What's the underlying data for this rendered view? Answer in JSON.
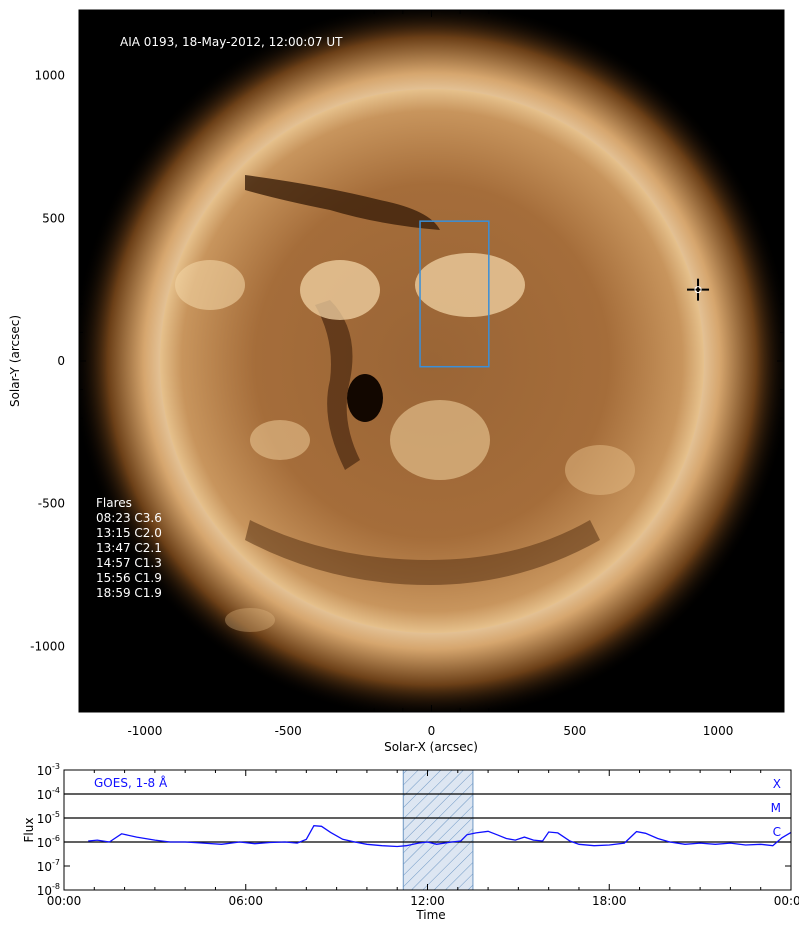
{
  "chart_data": [
    {
      "type": "image",
      "title": "AIA 0193, 18-May-2012, 12:00:07 UT",
      "xlabel": "Solar-X (arcsec)",
      "ylabel": "Solar-Y (arcsec)",
      "xlim": [
        -1230,
        1230
      ],
      "ylim": [
        -1230,
        1230
      ],
      "x_ticks": [
        -1000,
        -500,
        0,
        500,
        1000
      ],
      "y_ticks": [
        1000,
        500,
        0,
        -500,
        -1000
      ],
      "x_tick_labels": [
        "-1000",
        "-500",
        "0",
        "500",
        "1000"
      ],
      "y_tick_labels": [
        "1000",
        "500",
        "0",
        "-500",
        "-1000"
      ],
      "solar_radius_arcsec": 950,
      "box": {
        "x": [
          -40,
          200
        ],
        "y": [
          -20,
          490
        ],
        "color": "#3a8fd8"
      },
      "marker": {
        "type": "cross",
        "x": 930,
        "y": 250
      },
      "flares_heading": "Flares",
      "flares": [
        "08:23 C3.6",
        "13:15 C2.0",
        "13:47 C2.1",
        "14:57 C1.3",
        "15:56 C1.9",
        "18:59 C1.9"
      ],
      "colors": {
        "background": "#000000",
        "disk_bright": "#e8c38e",
        "disk_dark": "#3a200c",
        "corona": "#f4e4c9",
        "text": "#ffffff"
      }
    },
    {
      "type": "line",
      "title": "GOES, 1-8 Å",
      "xlabel": "Time",
      "ylabel": "Flux",
      "yscale": "log",
      "xlim": [
        0,
        24
      ],
      "ylim_exp": [
        -8,
        -3
      ],
      "x_ticks": [
        0,
        6,
        12,
        18,
        24
      ],
      "x_tick_labels": [
        "00:00",
        "06:00",
        "12:00",
        "18:00",
        "00:00"
      ],
      "y_tick_exponents": [
        -3,
        -4,
        -5,
        -6,
        -7,
        -8
      ],
      "y_tick_base": "10",
      "class_levels": [
        {
          "label": "X",
          "exp": -4
        },
        {
          "label": "M",
          "exp": -5
        },
        {
          "label": "C",
          "exp": -6
        }
      ],
      "shaded_interval": [
        11.2,
        13.5
      ],
      "series": [
        {
          "color": "#1010ff",
          "x": [
            0.8,
            1.1,
            1.5,
            1.9,
            2.4,
            3.0,
            3.5,
            4.0,
            4.6,
            5.2,
            5.8,
            6.3,
            6.8,
            7.3,
            7.7,
            8.0,
            8.25,
            8.5,
            8.8,
            9.2,
            9.6,
            10.0,
            10.5,
            11.0,
            11.3,
            11.7,
            12.0,
            12.3,
            12.8,
            13.1,
            13.3,
            13.6,
            14.0,
            14.3,
            14.6,
            14.9,
            15.2,
            15.5,
            15.8,
            16.0,
            16.3,
            16.7,
            17.0,
            17.5,
            18.0,
            18.5,
            18.9,
            19.2,
            19.6,
            20.0,
            20.5,
            21.0,
            21.5,
            22.0,
            22.5,
            23.0,
            23.4,
            23.7,
            24.0
          ],
          "y": [
            1.1e-06,
            1.2e-06,
            1e-06,
            2.2e-06,
            1.6e-06,
            1.2e-06,
            1e-06,
            1e-06,
            9e-07,
            8e-07,
            1e-06,
            8.5e-07,
            9.5e-07,
            1e-06,
            9e-07,
            1.3e-06,
            4.8e-06,
            4.5e-06,
            2.5e-06,
            1.3e-06,
            1e-06,
            8e-07,
            7e-07,
            6.5e-07,
            7e-07,
            9e-07,
            1e-06,
            8e-07,
            1e-06,
            1.1e-06,
            2e-06,
            2.4e-06,
            2.8e-06,
            2e-06,
            1.4e-06,
            1.2e-06,
            1.6e-06,
            1.2e-06,
            1.1e-06,
            2.6e-06,
            2.4e-06,
            1.1e-06,
            8e-07,
            7e-07,
            7.5e-07,
            9e-07,
            2.7e-06,
            2.3e-06,
            1.4e-06,
            1e-06,
            8e-07,
            9e-07,
            8e-07,
            9e-07,
            7.5e-07,
            8e-07,
            7e-07,
            1.5e-06,
            2.5e-06
          ]
        }
      ],
      "colors": {
        "shade_fill": "#c5d3e6",
        "shade_hatch": "#5b8fbf",
        "level_lines": "#000000",
        "class_text": "#1010ff"
      }
    }
  ]
}
